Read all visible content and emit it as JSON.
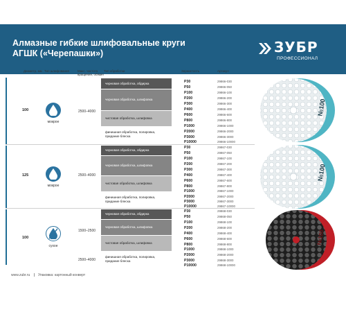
{
  "header": {
    "title_line1": "Алмазные гибкие шлифовальные круги",
    "title_line2": "АГШК («Черепашки»)",
    "logo_text": "ЗУБР",
    "logo_sub": "ПРОФЕССИОНАЛ",
    "bg_color": "#1f5e84"
  },
  "columns": {
    "diameter": "Диаметр, мм",
    "grinding_type": "Тип шлифования",
    "max_speed_line1": "Макс. частота",
    "max_speed_line2": "вращения, об/мин",
    "processing_type": "Тип обработки",
    "grit": "Зернистость",
    "article": "Артикул"
  },
  "labels": {
    "wet": "мокрое",
    "dry": "сухое"
  },
  "groups": [
    {
      "diameter": "100",
      "speed": "2500–4000",
      "type": "мокрое",
      "bands": [
        {
          "text": "черновая обработка, обдирка"
        },
        {
          "text": "черновая обработка, шлифовка"
        },
        {
          "text": "чистовая обработка, шлифовка"
        },
        {
          "text": "финишная обработка, полировка, придание блеска"
        }
      ],
      "rows": [
        {
          "grit": "P30",
          "art": "29866-030"
        },
        {
          "grit": "P50",
          "art": "29866-050"
        },
        {
          "grit": "P100",
          "art": "29866-100"
        },
        {
          "grit": "P200",
          "art": "29866-200"
        },
        {
          "grit": "P300",
          "art": "29866-300"
        },
        {
          "grit": "P400",
          "art": "29866-400"
        },
        {
          "grit": "P600",
          "art": "29866-600"
        },
        {
          "grit": "P800",
          "art": "29866-800"
        },
        {
          "grit": "P1000",
          "art": "29866-1000"
        },
        {
          "grit": "P2000",
          "art": "29866-2000"
        },
        {
          "grit": "P3000",
          "art": "29866-3000"
        },
        {
          "grit": "P10000",
          "art": "29866-10000"
        }
      ]
    },
    {
      "diameter": "125",
      "speed": "2500–4000",
      "type": "мокрое",
      "bands": [
        {
          "text": "черновая обработка, обдирка"
        },
        {
          "text": "черновая обработка, шлифовка"
        },
        {
          "text": "чистовая обработка, шлифовка"
        },
        {
          "text": "финишная обработка, полировка, придание блеска"
        }
      ],
      "rows": [
        {
          "grit": "P30",
          "art": "29867-030"
        },
        {
          "grit": "P50",
          "art": "29867-050"
        },
        {
          "grit": "P100",
          "art": "29867-100"
        },
        {
          "grit": "P200",
          "art": "29867-200"
        },
        {
          "grit": "P300",
          "art": "29867-300"
        },
        {
          "grit": "P400",
          "art": "29867-400"
        },
        {
          "grit": "P600",
          "art": "29867-600"
        },
        {
          "grit": "P800",
          "art": "29867-800"
        },
        {
          "grit": "P1000",
          "art": "29867-1000"
        },
        {
          "grit": "P2000",
          "art": "29867-2000"
        },
        {
          "grit": "P3000",
          "art": "29867-3000"
        },
        {
          "grit": "P10000",
          "art": "29867-10000"
        }
      ]
    },
    {
      "diameter": "100",
      "speed_a": "1500–2500",
      "speed_b": "2500–4000",
      "type": "сухое",
      "bands": [
        {
          "text": "черновая обработка, обдирка"
        },
        {
          "text": "черновая обработка, шлифовка"
        },
        {
          "text": "чистовая обработка, шлифовка"
        },
        {
          "text": "финишная обработка, полировка, придание блеска"
        }
      ],
      "rows": [
        {
          "grit": "P30",
          "art": "29868-030"
        },
        {
          "grit": "P50",
          "art": "29868-050"
        },
        {
          "grit": "P100",
          "art": "29868-100"
        },
        {
          "grit": "P200",
          "art": "29868-200"
        },
        {
          "grit": "P400",
          "art": "29868-400"
        },
        {
          "grit": "P600",
          "art": "29868-600"
        },
        {
          "grit": "P800",
          "art": "29868-800"
        },
        {
          "grit": "P1000",
          "art": "29868-1000"
        },
        {
          "grit": "P2000",
          "art": "29868-2000"
        },
        {
          "grit": "P3000",
          "art": "29868-3000"
        },
        {
          "grit": "P10000",
          "art": "29868-10000"
        }
      ]
    }
  ],
  "discs": {
    "disc1_label": "№100",
    "disc2_label": "№100",
    "disc3_label": "№100"
  },
  "footer": {
    "site": "www.zubr.ru",
    "note": "Упаковка: картонный конверт"
  }
}
